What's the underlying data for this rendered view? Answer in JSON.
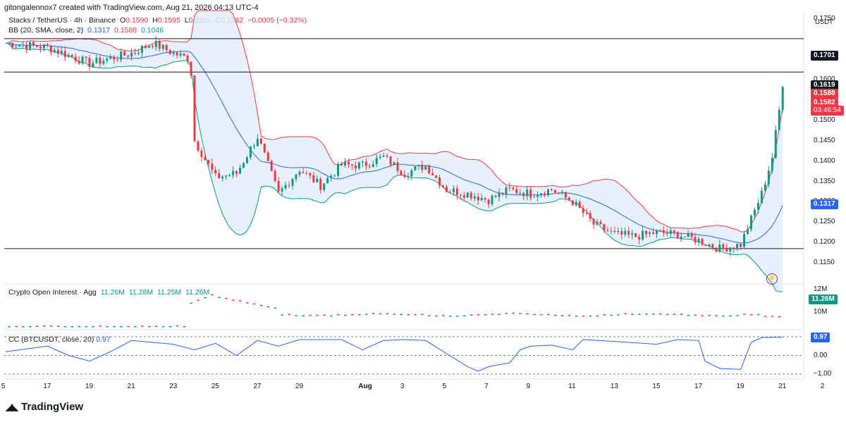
{
  "caption": "gitongalennox7 created with TradingView.com, Aug 21, 2026 04:13 UTC-4",
  "logo_text": "TradingView",
  "main_legend": {
    "symbol": "Stacks / TetherUS · 4h · Binance",
    "open_label": "O",
    "open": "0.1590",
    "high_label": "H",
    "high": "0.1595",
    "low_label": "L",
    "low": "0.1581",
    "close_label": "C",
    "close": "0.1582",
    "change": "−0.0005 (−0.32%)"
  },
  "bb_legend": {
    "label": "BB (20, SMA, close, 2)",
    "basis": "0.1317",
    "upper": "0.1588",
    "lower": "0.1046"
  },
  "oi_legend": {
    "label": "Crypto Open Interest · Agg",
    "o": "11.26M",
    "h": "11.28M",
    "l": "11.25M",
    "c": "11.26M"
  },
  "cc_legend": {
    "label": "CC (BTCUSDT, close, 20)",
    "value": "0.97"
  },
  "currency": "USDT",
  "price_ticks": [
    "0.1750",
    "0.1650",
    "0.1600",
    "0.1550",
    "0.1500",
    "0.1450",
    "0.1400",
    "0.1350",
    "0.1300",
    "0.1250",
    "0.1200",
    "0.1150"
  ],
  "oi_ticks": [
    "12M",
    "10M"
  ],
  "cc_ticks": [
    "0.00",
    "−1.00"
  ],
  "date_ticks": [
    "5",
    "17",
    "19",
    "21",
    "23",
    "25",
    "27",
    "29",
    "Aug",
    "3",
    "5",
    "7",
    "9",
    "11",
    "13",
    "15",
    "17",
    "19",
    "21",
    "2"
  ],
  "tags": {
    "line_1701": "0.1701",
    "line_1619": "0.1619",
    "upper_band": "0.1588",
    "last_price": "0.1582",
    "countdown": "03:46:54",
    "basis": "0.1317",
    "oi_last": "11.26M",
    "cc_last": "0.97"
  },
  "colors": {
    "up": "#089981",
    "down": "#f23645",
    "basis": "#2962ff",
    "upper": "#f23645",
    "lower": "#089981",
    "band_fill": "#e3eefb",
    "hline": "#131722"
  },
  "chart_data": [
    {
      "type": "candlestick",
      "title": "Stacks / TetherUS · 4h · Binance",
      "x_range": [
        "Jul 15",
        "Aug 22"
      ],
      "ylim": [
        0.11,
        0.177
      ],
      "horizontal_lines": [
        0.1701,
        0.1619,
        0.1185
      ],
      "anchors_close": [
        [
          "Jul 15",
          0.169
        ],
        [
          "Jul 17",
          0.168
        ],
        [
          "Jul 19",
          0.164
        ],
        [
          "Jul 21",
          0.1665
        ],
        [
          "Jul 22",
          0.169
        ],
        [
          "Jul 23",
          0.1665
        ],
        [
          "Jul 23.8",
          0.165
        ],
        [
          "Jul 24",
          0.145
        ],
        [
          "Jul 25",
          0.136
        ],
        [
          "Jul 26",
          0.137
        ],
        [
          "Jul 27",
          0.146
        ],
        [
          "Jul 28",
          0.132
        ],
        [
          "Jul 29",
          0.138
        ],
        [
          "Jul 30",
          0.134
        ],
        [
          "Jul 31",
          0.139
        ],
        [
          "Aug 1",
          0.139
        ],
        [
          "Aug 2",
          0.141
        ],
        [
          "Aug 3",
          0.137
        ],
        [
          "Aug 4",
          0.139
        ],
        [
          "Aug 5",
          0.133
        ],
        [
          "Aug 6",
          0.132
        ],
        [
          "Aug 7",
          0.1305
        ],
        [
          "Aug 8",
          0.133
        ],
        [
          "Aug 9",
          0.132
        ],
        [
          "Aug 10",
          0.133
        ],
        [
          "Aug 11",
          0.13
        ],
        [
          "Aug 12",
          0.1245
        ],
        [
          "Aug 13",
          0.122
        ],
        [
          "Aug 14",
          0.1215
        ],
        [
          "Aug 15",
          0.1225
        ],
        [
          "Aug 16",
          0.122
        ],
        [
          "Aug 17",
          0.1205
        ],
        [
          "Aug 18",
          0.1185
        ],
        [
          "Aug 19",
          0.1195
        ],
        [
          "Aug 20",
          0.132
        ],
        [
          "Aug 20.5",
          0.141
        ],
        [
          "Aug 21",
          0.1582
        ]
      ],
      "bollinger": {
        "period": 20,
        "basis_last": 0.1317,
        "upper_last": 0.1588,
        "lower_last": 0.1046
      }
    },
    {
      "type": "bar",
      "title": "Crypto Open Interest · Agg",
      "last": "11.26M",
      "ylim_label": [
        "10M",
        "12M"
      ]
    },
    {
      "type": "line",
      "title": "CC (BTCUSDT, close, 20)",
      "ylim": [
        -1.0,
        1.0
      ],
      "last": 0.97,
      "points": [
        [
          "Jul 15",
          0.2
        ],
        [
          "Jul 17",
          0.5
        ],
        [
          "Jul 18",
          0.0
        ],
        [
          "Jul 19",
          -0.3
        ],
        [
          "Jul 20",
          0.2
        ],
        [
          "Jul 21",
          0.8
        ],
        [
          "Jul 23",
          0.6
        ],
        [
          "Jul 24",
          0.3
        ],
        [
          "Jul 25",
          0.65
        ],
        [
          "Jul 26",
          0.0
        ],
        [
          "Jul 27",
          0.8
        ],
        [
          "Jul 28",
          0.5
        ],
        [
          "Jul 29",
          0.85
        ],
        [
          "Jul 31",
          0.85
        ],
        [
          "Aug 1",
          0.3
        ],
        [
          "Aug 2",
          0.8
        ],
        [
          "Aug 3",
          0.85
        ],
        [
          "Aug 4",
          0.8
        ],
        [
          "Aug 5",
          0.1
        ],
        [
          "Aug 6",
          -0.6
        ],
        [
          "Aug 6.5",
          -0.85
        ],
        [
          "Aug 7",
          -0.6
        ],
        [
          "Aug 8",
          -0.4
        ],
        [
          "Aug 8.5",
          0.3
        ],
        [
          "Aug 9",
          0.5
        ],
        [
          "Aug 10",
          0.55
        ],
        [
          "Aug 11",
          0.3
        ],
        [
          "Aug 11.5",
          0.85
        ],
        [
          "Aug 13",
          0.75
        ],
        [
          "Aug 15",
          0.6
        ],
        [
          "Aug 16",
          0.85
        ],
        [
          "Aug 17",
          0.8
        ],
        [
          "Aug 17.3",
          -0.3
        ],
        [
          "Aug 18",
          -0.7
        ],
        [
          "Aug 19",
          -0.75
        ],
        [
          "Aug 19.5",
          0.7
        ],
        [
          "Aug 20",
          0.95
        ],
        [
          "Aug 21",
          0.97
        ]
      ]
    }
  ]
}
